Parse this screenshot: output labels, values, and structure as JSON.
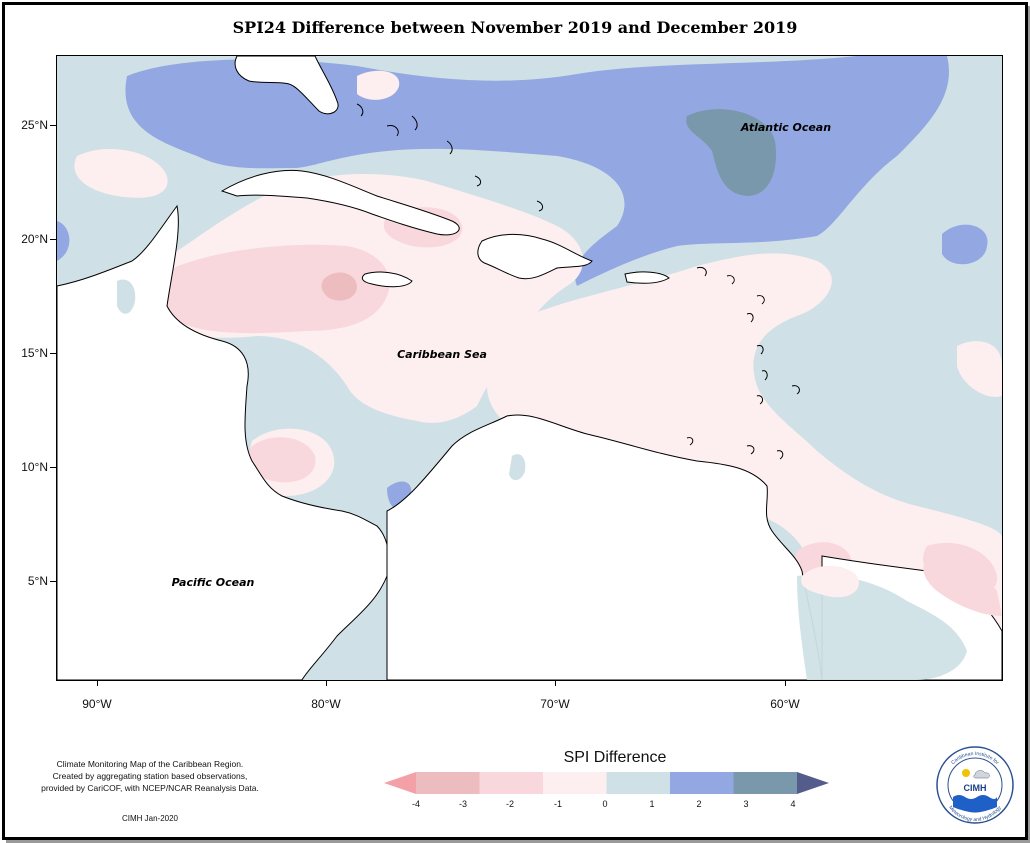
{
  "title": "SPI24 Difference between November 2019 and December 2019",
  "map": {
    "ocean_labels": {
      "atlantic": "Atlantic Ocean",
      "caribbean": "Caribbean Sea",
      "pacific": "Pacific Ocean"
    },
    "lat_ticks": [
      "25°N",
      "20°N",
      "15°N",
      "10°N",
      "5°N"
    ],
    "lon_ticks": [
      "90°W",
      "80°W",
      "70°W",
      "60°W"
    ]
  },
  "legend": {
    "title": "SPI Difference",
    "labels": [
      "-4",
      "-3",
      "-2",
      "-1",
      "0",
      "1",
      "2",
      "3",
      "4"
    ],
    "colors": [
      "#f3a0a6",
      "#ecbcbf",
      "#f8d7dd",
      "#fdeeef",
      "#cfe1e6",
      "#93a8e2",
      "#7a98ac",
      "#545c8c"
    ]
  },
  "credit": {
    "line1": "Climate Monitoring Map of the Caribbean Region.",
    "line2": "Created by aggregating station based observations,",
    "line3": "provided by CariCOF, with NCEP/NCAR Reanalysis Data.",
    "footer": "CIMH Jan-2020"
  },
  "logo": {
    "text": "CIMH",
    "ring_top": "Caribbean Institute for",
    "ring_bottom": "Meteorology and Hydrology"
  }
}
